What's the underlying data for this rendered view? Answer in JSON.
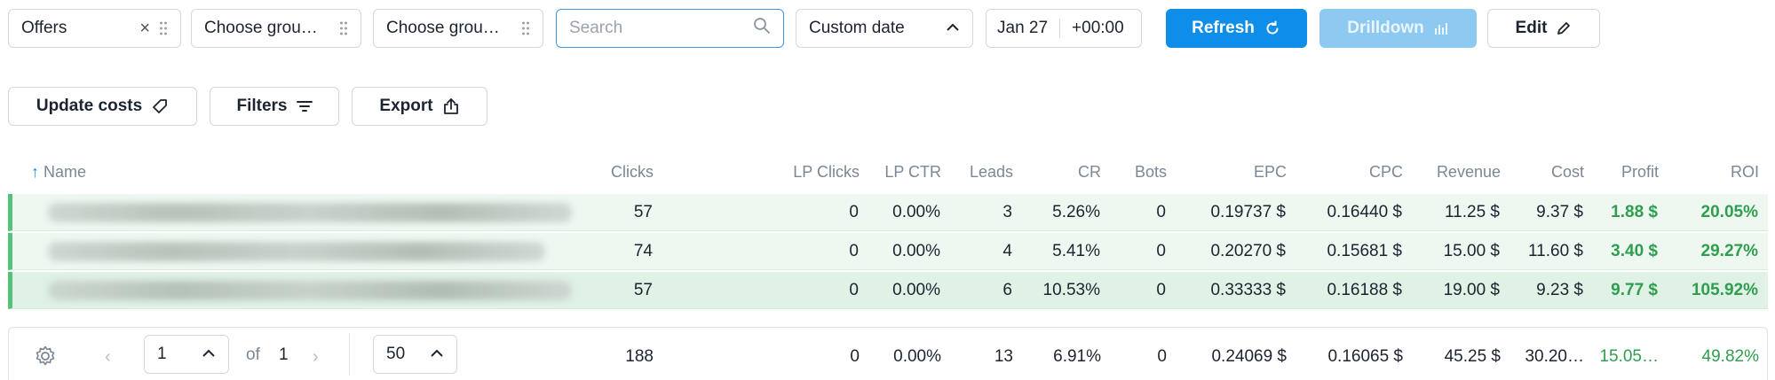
{
  "toolbar": {
    "group1": "Offers",
    "group2": "Choose grou…",
    "group3": "Choose grou…",
    "search_placeholder": "Search",
    "date_mode": "Custom date",
    "date_value": "Jan 27",
    "timezone": "+00:00",
    "refresh_label": "Refresh",
    "drilldown_label": "Drilldown",
    "edit_label": "Edit",
    "update_costs_label": "Update costs",
    "filters_label": "Filters",
    "export_label": "Export"
  },
  "table": {
    "columns": [
      "Name",
      "Clicks",
      "LP Clicks",
      "LP CTR",
      "Leads",
      "CR",
      "Bots",
      "EPC",
      "CPC",
      "Revenue",
      "Cost",
      "Profit",
      "ROI"
    ],
    "rows": [
      {
        "clicks": "57",
        "lp_clicks": "0",
        "lp_ctr": "0.00%",
        "leads": "3",
        "cr": "5.26%",
        "bots": "0",
        "epc": "0.19737 $",
        "cpc": "0.16440 $",
        "revenue": "11.25 $",
        "cost": "9.37 $",
        "profit": "1.88 $",
        "roi": "20.05%"
      },
      {
        "clicks": "74",
        "lp_clicks": "0",
        "lp_ctr": "0.00%",
        "leads": "4",
        "cr": "5.41%",
        "bots": "0",
        "epc": "0.20270 $",
        "cpc": "0.15681 $",
        "revenue": "15.00 $",
        "cost": "11.60 $",
        "profit": "3.40 $",
        "roi": "29.27%"
      },
      {
        "clicks": "57",
        "lp_clicks": "0",
        "lp_ctr": "0.00%",
        "leads": "6",
        "cr": "10.53%",
        "bots": "0",
        "epc": "0.33333 $",
        "cpc": "0.16188 $",
        "revenue": "19.00 $",
        "cost": "9.23 $",
        "profit": "9.77 $",
        "roi": "105.92%"
      }
    ],
    "totals": {
      "clicks": "188",
      "lp_clicks": "0",
      "lp_ctr": "0.00%",
      "leads": "13",
      "cr": "6.91%",
      "bots": "0",
      "epc": "0.24069 $",
      "cpc": "0.16065 $",
      "revenue": "45.25 $",
      "cost": "30.20…",
      "profit": "15.05…",
      "roi": "49.82%"
    }
  },
  "pagination": {
    "page": "1",
    "of_label": "of",
    "total_pages": "1",
    "per_page": "50"
  },
  "colors": {
    "accent": "#0e8ee8",
    "positive": "#2f9e4f",
    "row_highlight": "#55c27a"
  }
}
